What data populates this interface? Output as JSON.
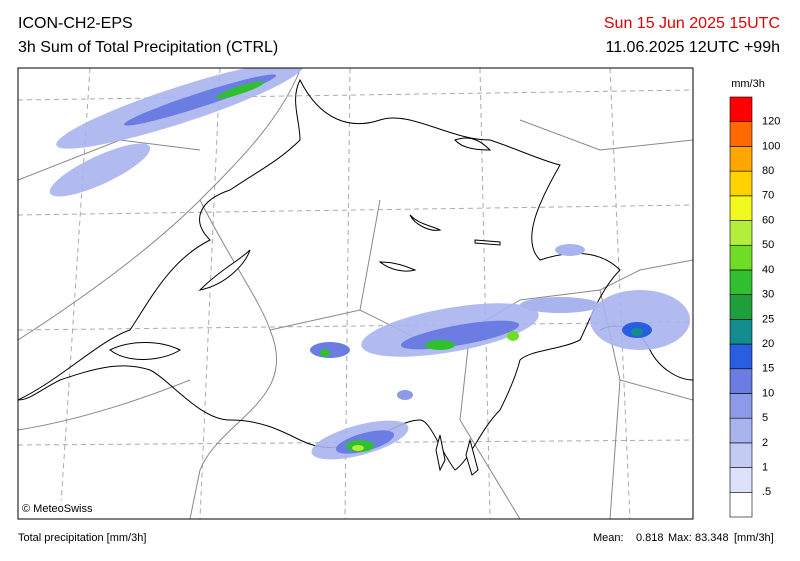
{
  "header": {
    "model": "ICON-CH2-EPS",
    "product": "3h Sum of Total Precipitation (CTRL)",
    "valid_time": "Sun 15 Jun 2025 15UTC",
    "run": "11.06.2025 12UTC +99h"
  },
  "map": {
    "credit": "© MeteoSwiss"
  },
  "legend": {
    "unit": "mm/3h",
    "labels": [
      ".5",
      "1",
      "2",
      "5",
      "10",
      "15",
      "20",
      "25",
      "30",
      "40",
      "50",
      "60",
      "70",
      "80",
      "100",
      "120"
    ],
    "colors": [
      "#ffffff",
      "#dde2fb",
      "#c3cbf4",
      "#a8b4ee",
      "#8c9ae8",
      "#6b7de2",
      "#2a5ee0",
      "#128c8c",
      "#1f9e3c",
      "#2fbf2f",
      "#6fdc26",
      "#b4ee3c",
      "#f0f81e",
      "#ffd200",
      "#ffa600",
      "#ff6a00",
      "#ff0000"
    ]
  },
  "footer": {
    "description": "Total precipitation [mm/3h]",
    "mean_label": "Mean:",
    "mean": "0.818",
    "max_label": "Max:",
    "max": "83.348",
    "unit": "[mm/3h]"
  }
}
